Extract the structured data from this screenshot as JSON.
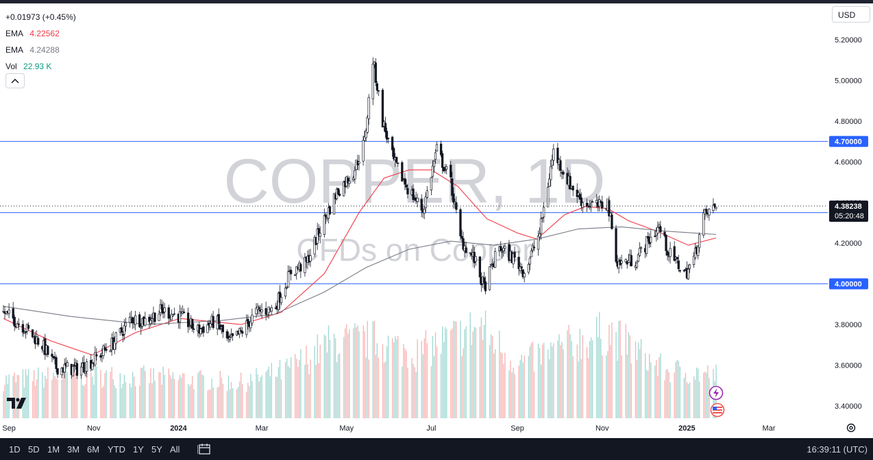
{
  "header": {
    "change": "+0.01973 (+0.45%)",
    "indicators": [
      {
        "label": "EMA",
        "value": "4.22562",
        "color": "#f23645"
      },
      {
        "label": "EMA",
        "value": "4.24288",
        "color": "#787b86"
      },
      {
        "label": "Vol",
        "value": "22.93 K",
        "color": "#089981"
      }
    ],
    "currency": "USD"
  },
  "watermark": {
    "title": "COPPER, 1D",
    "subtitle": "CFDs on Copper"
  },
  "timeframes": [
    "1D",
    "5D",
    "1M",
    "3M",
    "6M",
    "YTD",
    "1Y",
    "5Y",
    "All"
  ],
  "clock": "16:39:11 (UTC)",
  "colors": {
    "up": "#131722",
    "down": "#131722",
    "ema_fast": "#f23645",
    "ema_slow": "#787b86",
    "vol_up": "#26a69a",
    "vol_down": "#ef5350",
    "level_line": "#2962ff"
  },
  "chart_data": {
    "type": "candlestick",
    "y_ticks": [
      "5.20000",
      "5.00000",
      "4.80000",
      "4.60000",
      "4.40000",
      "4.20000",
      "3.80000",
      "3.60000",
      "3.40000"
    ],
    "x_ticks": [
      "Sep",
      "Nov",
      "2024",
      "Mar",
      "May",
      "Jul",
      "Sep",
      "Nov",
      "2025",
      "Mar"
    ],
    "ylim": [
      3.34,
      5.26
    ],
    "horizontal_levels": [
      {
        "value": 4.7,
        "label": "4.70000"
      },
      {
        "value": 4.35,
        "label": "4.35000"
      },
      {
        "value": 4.0,
        "label": "4.00000"
      }
    ],
    "last_price": {
      "value": 4.38238,
      "label": "4.38238",
      "countdown": "05:20:48"
    },
    "close_path": [
      [
        "2023-08-28",
        3.86
      ],
      [
        "2023-09-10",
        3.8
      ],
      [
        "2023-09-25",
        3.7
      ],
      [
        "2023-10-05",
        3.59
      ],
      [
        "2023-10-20",
        3.58
      ],
      [
        "2023-10-31",
        3.62
      ],
      [
        "2023-11-15",
        3.71
      ],
      [
        "2023-11-28",
        3.83
      ],
      [
        "2023-12-08",
        3.82
      ],
      [
        "2023-12-20",
        3.87
      ],
      [
        "2024-01-02",
        3.84
      ],
      [
        "2024-01-15",
        3.77
      ],
      [
        "2024-01-28",
        3.82
      ],
      [
        "2024-02-06",
        3.71
      ],
      [
        "2024-02-15",
        3.76
      ],
      [
        "2024-02-26",
        3.86
      ],
      [
        "2024-03-10",
        3.88
      ],
      [
        "2024-03-22",
        4.06
      ],
      [
        "2024-04-02",
        4.1
      ],
      [
        "2024-04-12",
        4.27
      ],
      [
        "2024-04-24",
        4.45
      ],
      [
        "2024-05-06",
        4.55
      ],
      [
        "2024-05-14",
        4.7
      ],
      [
        "2024-05-20",
        5.1
      ],
      [
        "2024-05-27",
        4.8
      ],
      [
        "2024-06-04",
        4.6
      ],
      [
        "2024-06-14",
        4.47
      ],
      [
        "2024-06-25",
        4.36
      ],
      [
        "2024-07-05",
        4.66
      ],
      [
        "2024-07-15",
        4.5
      ],
      [
        "2024-07-22",
        4.22
      ],
      [
        "2024-08-01",
        4.12
      ],
      [
        "2024-08-08",
        3.98
      ],
      [
        "2024-08-19",
        4.18
      ],
      [
        "2024-08-30",
        4.12
      ],
      [
        "2024-09-06",
        4.06
      ],
      [
        "2024-09-17",
        4.25
      ],
      [
        "2024-09-27",
        4.65
      ],
      [
        "2024-10-08",
        4.5
      ],
      [
        "2024-10-18",
        4.4
      ],
      [
        "2024-10-30",
        4.38
      ],
      [
        "2024-11-05",
        4.4
      ],
      [
        "2024-11-12",
        4.1
      ],
      [
        "2024-11-25",
        4.12
      ],
      [
        "2024-12-05",
        4.22
      ],
      [
        "2024-12-12",
        4.28
      ],
      [
        "2024-12-19",
        4.15
      ],
      [
        "2024-12-31",
        4.05
      ],
      [
        "2025-01-06",
        4.12
      ],
      [
        "2025-01-13",
        4.33
      ],
      [
        "2025-01-22",
        4.38238
      ]
    ],
    "series": [
      {
        "name": "EMA",
        "values": [
          [
            "2023-08-28",
            3.83
          ],
          [
            "2023-10-01",
            3.72
          ],
          [
            "2023-10-31",
            3.65
          ],
          [
            "2023-12-01",
            3.76
          ],
          [
            "2024-01-02",
            3.83
          ],
          [
            "2024-02-15",
            3.8
          ],
          [
            "2024-03-15",
            3.86
          ],
          [
            "2024-04-15",
            4.05
          ],
          [
            "2024-05-10",
            4.35
          ],
          [
            "2024-05-28",
            4.52
          ],
          [
            "2024-06-15",
            4.56
          ],
          [
            "2024-07-01",
            4.56
          ],
          [
            "2024-07-20",
            4.48
          ],
          [
            "2024-08-10",
            4.32
          ],
          [
            "2024-09-01",
            4.25
          ],
          [
            "2024-09-15",
            4.22
          ],
          [
            "2024-10-05",
            4.34
          ],
          [
            "2024-10-20",
            4.38
          ],
          [
            "2024-11-05",
            4.37
          ],
          [
            "2024-11-20",
            4.31
          ],
          [
            "2024-12-10",
            4.26
          ],
          [
            "2025-01-02",
            4.19
          ],
          [
            "2025-01-22",
            4.22562
          ]
        ]
      },
      {
        "name": "EMA",
        "values": [
          [
            "2023-08-28",
            3.89
          ],
          [
            "2023-10-15",
            3.84
          ],
          [
            "2023-12-10",
            3.8
          ],
          [
            "2024-02-01",
            3.82
          ],
          [
            "2024-03-10",
            3.85
          ],
          [
            "2024-04-15",
            3.96
          ],
          [
            "2024-05-15",
            4.08
          ],
          [
            "2024-06-15",
            4.17
          ],
          [
            "2024-07-15",
            4.21
          ],
          [
            "2024-08-15",
            4.19
          ],
          [
            "2024-09-15",
            4.22
          ],
          [
            "2024-10-15",
            4.27
          ],
          [
            "2024-11-15",
            4.28
          ],
          [
            "2024-12-15",
            4.26
          ],
          [
            "2025-01-22",
            4.24288
          ]
        ]
      }
    ],
    "volume_profile": [
      [
        "2023-08-28",
        0.35
      ],
      [
        "2023-10-15",
        0.4
      ],
      [
        "2023-12-15",
        0.38
      ],
      [
        "2024-02-15",
        0.33
      ],
      [
        "2024-03-20",
        0.45
      ],
      [
        "2024-04-20",
        0.7
      ],
      [
        "2024-05-20",
        0.72
      ],
      [
        "2024-06-20",
        0.6
      ],
      [
        "2024-08-05",
        0.85
      ],
      [
        "2024-09-01",
        0.5
      ],
      [
        "2024-10-01",
        0.65
      ],
      [
        "2024-11-05",
        0.8
      ],
      [
        "2024-12-15",
        0.45
      ],
      [
        "2025-01-22",
        0.4
      ]
    ],
    "grid": false
  }
}
